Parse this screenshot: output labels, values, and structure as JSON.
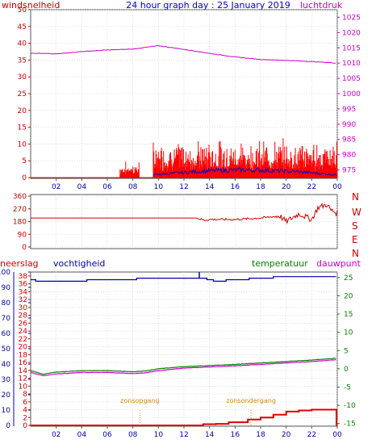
{
  "header": {
    "left": "windsnelheid",
    "center": "24 hour graph day : 25 January 2019",
    "right": "luchtdruk"
  },
  "labels": {
    "neerslag": "neerslag",
    "vochtigheid": "vochtigheid",
    "temperatuur": "temperatuur",
    "dauwpunt": "dauwpunt",
    "sunrise": "zonsopgang",
    "sunset": "zonsondergang"
  },
  "colors": {
    "wind": "#ff0000",
    "gust": "#ff0000",
    "windAvg": "#0000cc",
    "pressure": "#cc00cc",
    "direction": "#cc0000",
    "humidity": "#0000aa",
    "temperature": "#008000",
    "dewpoint": "#cc00cc",
    "rain": "#dd0000",
    "sunmark": "#dd8800",
    "axisRed": "#cc0000",
    "axisBlue": "#0000aa",
    "axisMagenta": "#cc00cc",
    "axisGreen": "#008000",
    "grid": "#cccccc"
  },
  "chart_data": [
    {
      "type": "line",
      "name": "wind-pressure",
      "x": [
        "02",
        "04",
        "06",
        "08",
        "10",
        "12",
        "14",
        "16",
        "18",
        "20",
        "22",
        "00"
      ],
      "y_left": {
        "ticks": [
          0,
          5,
          10,
          15,
          20,
          25,
          30,
          35,
          40,
          45,
          50
        ],
        "range": [
          0,
          50
        ]
      },
      "y_right": {
        "ticks": [
          975,
          980,
          985,
          990,
          995,
          1000,
          1005,
          1010,
          1015,
          1020,
          1025
        ],
        "range": [
          972.5,
          1027.5
        ]
      },
      "pressure": {
        "hours": [
          0,
          2,
          4,
          6,
          8,
          10,
          12,
          14,
          16,
          18,
          20,
          22,
          24
        ],
        "values": [
          1013.3,
          1013.0,
          1013.8,
          1014.3,
          1014.6,
          1015.7,
          1014.5,
          1013.2,
          1012.0,
          1011.2,
          1010.9,
          1010.5,
          1010.0
        ]
      },
      "wind_activity": [
        [
          7.0,
          8.5,
          5
        ],
        [
          9.6,
          24.0,
          12
        ]
      ],
      "wind_avg_peak": 3
    },
    {
      "type": "line",
      "name": "wind-direction",
      "y_ticks": [
        0,
        90,
        180,
        270,
        360
      ],
      "compass": [
        "N",
        "W",
        "S",
        "E",
        "N"
      ],
      "hours": [
        0,
        13,
        13.6,
        14,
        16,
        18,
        19.5,
        20,
        21,
        22,
        22.5,
        23.2,
        23.5,
        24
      ],
      "values": [
        205,
        205,
        190,
        195,
        195,
        205,
        220,
        180,
        235,
        195,
        280,
        300,
        260,
        240
      ]
    },
    {
      "type": "line",
      "name": "humidity-temperature-rain",
      "x": [
        "02",
        "04",
        "06",
        "08",
        "10",
        "12",
        "14",
        "16",
        "18",
        "20",
        "22",
        "00"
      ],
      "y_left": {
        "ticks": [
          0,
          10,
          20,
          30,
          40,
          50,
          60,
          70,
          80,
          90,
          100
        ],
        "range": [
          0,
          100
        ]
      },
      "y_rain": {
        "ticks": [
          0,
          2,
          4,
          6,
          8,
          10,
          12,
          14,
          16,
          18,
          20,
          22,
          24,
          26,
          28,
          30,
          32,
          34,
          36,
          38
        ],
        "range": [
          0,
          39
        ]
      },
      "y_right": {
        "ticks": [
          -15,
          -10,
          -5,
          0,
          5,
          10,
          15,
          20,
          25
        ],
        "range": [
          -15.5,
          26.5
        ]
      },
      "humidity": {
        "hours": [
          0,
          0.7,
          8,
          8.5,
          12,
          13.5,
          14.5,
          16,
          18,
          20,
          22,
          24
        ],
        "values": [
          95,
          94,
          95,
          96,
          96,
          96,
          94,
          95,
          96,
          97,
          97,
          97
        ]
      },
      "temperature": {
        "hours": [
          0,
          1,
          2,
          4,
          6,
          8,
          9,
          10,
          12,
          14,
          16,
          18,
          20,
          22,
          24
        ],
        "values": [
          -0.5,
          -1.5,
          -0.9,
          -0.5,
          -0.5,
          -0.8,
          -0.6,
          0.0,
          0.6,
          0.9,
          1.2,
          1.6,
          2.0,
          2.4,
          2.9
        ]
      },
      "dewpoint": {
        "hours": [
          0,
          1,
          2,
          4,
          6,
          8,
          9,
          10,
          12,
          14,
          16,
          18,
          20,
          22,
          24
        ],
        "values": [
          -1.0,
          -1.9,
          -1.4,
          -1.0,
          -1.0,
          -1.3,
          -1.1,
          -0.5,
          0.2,
          0.5,
          0.8,
          1.2,
          1.6,
          2.0,
          2.5
        ]
      },
      "rain": {
        "hours": [
          0,
          12,
          13.5,
          14.5,
          15.5,
          17,
          18,
          19,
          20,
          21,
          22,
          23,
          24
        ],
        "values": [
          0,
          0,
          0.3,
          0.4,
          0.8,
          1.5,
          2.0,
          2.7,
          3.5,
          3.8,
          4.0,
          4.0,
          4.0
        ]
      },
      "sunrise_hour": 8.55,
      "sunset_hour": 17.25
    }
  ]
}
